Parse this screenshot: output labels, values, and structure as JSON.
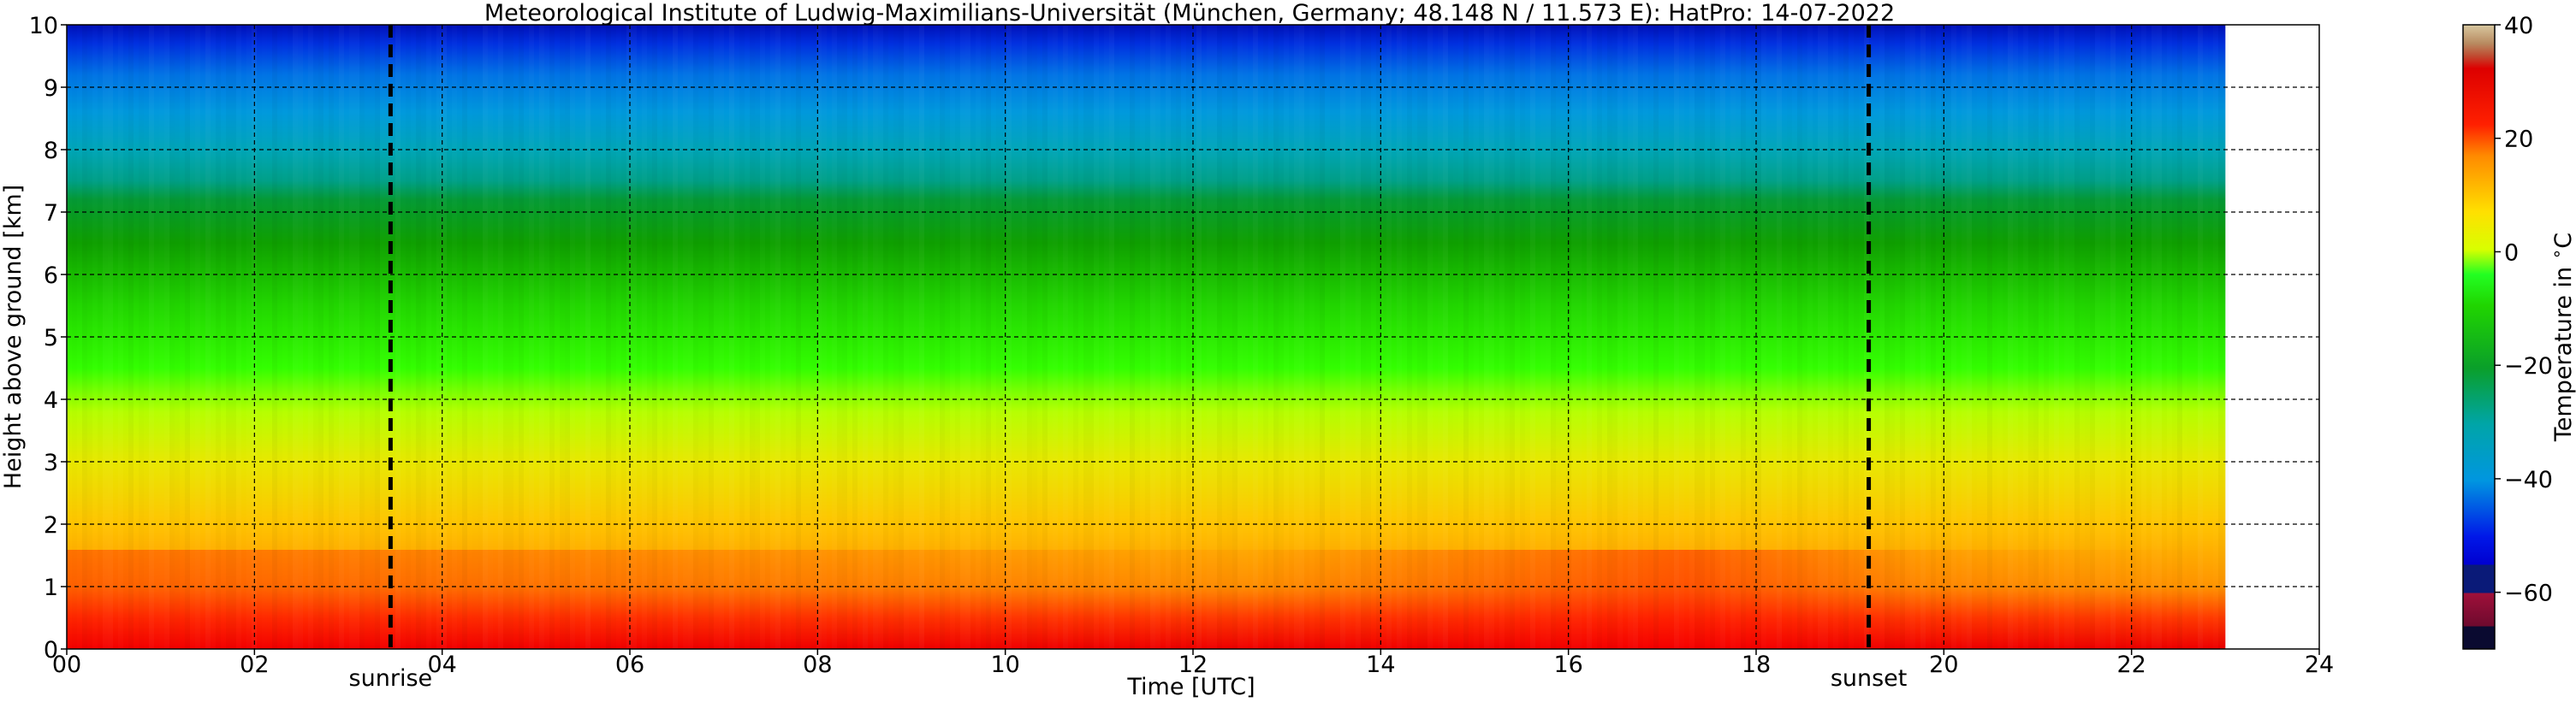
{
  "chart_data": {
    "type": "heatmap",
    "title": "Meteorological Institute of Ludwig-Maximilians-Universität (München, Germany; 48.148 N / 11.573 E):    HatPro: 14-07-2022",
    "xlabel": "Time [UTC]",
    "ylabel": "Height above ground [km]",
    "xlim": [
      0,
      24
    ],
    "ylim": [
      0,
      10
    ],
    "x_ticks": [
      "00",
      "02",
      "04",
      "06",
      "08",
      "10",
      "12",
      "14",
      "16",
      "18",
      "20",
      "22",
      "24"
    ],
    "y_ticks": [
      "0",
      "1",
      "2",
      "3",
      "4",
      "5",
      "6",
      "7",
      "8",
      "9",
      "10"
    ],
    "grid": true,
    "data_end_time": 23.0,
    "markers": [
      {
        "label": "sunrise",
        "x": 3.45
      },
      {
        "label": "sunset",
        "x": 19.2
      }
    ],
    "colorbar": {
      "label": "Temperature in $^\\circ$C",
      "range": [
        -70,
        40
      ],
      "ticks": [
        "40",
        "20",
        "0",
        "−20",
        "−40",
        "−60"
      ],
      "tick_values": [
        40,
        20,
        0,
        -20,
        -40,
        -60
      ]
    },
    "temperature_profile": {
      "height_km": [
        0,
        0.5,
        1,
        2,
        3,
        4,
        5,
        6,
        7,
        8,
        9,
        10
      ],
      "temperature_c": [
        27,
        24,
        20,
        14,
        8,
        0,
        -8,
        -14,
        -22,
        -31,
        -40,
        -52
      ]
    }
  }
}
